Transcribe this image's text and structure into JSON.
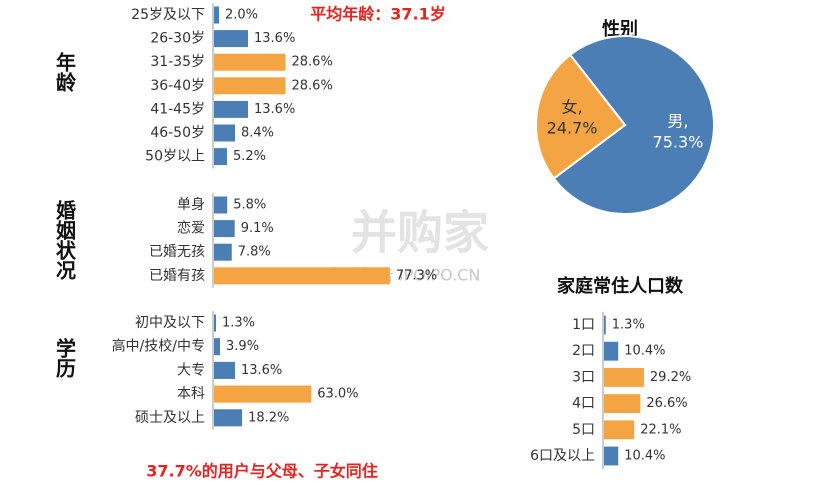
{
  "chart_data": [
    {
      "type": "bar",
      "orientation": "horizontal",
      "title": "年龄",
      "categories": [
        "25岁及以下",
        "26-30岁",
        "31-35岁",
        "36-40岁",
        "41-45岁",
        "46-50岁",
        "50岁以上"
      ],
      "values": [
        2.0,
        13.6,
        28.6,
        28.6,
        13.6,
        8.4,
        5.2
      ],
      "value_labels": [
        "2.0%",
        "13.6%",
        "28.6%",
        "28.6%",
        "13.6%",
        "8.4%",
        "5.2%"
      ],
      "colors": [
        "#4a7eb4",
        "#4a7eb4",
        "#f5a443",
        "#f5a443",
        "#4a7eb4",
        "#4a7eb4",
        "#4a7eb4"
      ],
      "xlim": [
        0,
        30
      ]
    },
    {
      "type": "bar",
      "orientation": "horizontal",
      "title": "婚姻状况",
      "categories": [
        "单身",
        "恋爱",
        "已婚无孩",
        "已婚有孩"
      ],
      "values": [
        5.8,
        9.1,
        7.8,
        77.3
      ],
      "value_labels": [
        "5.8%",
        "9.1%",
        "7.8%",
        "77.3%"
      ],
      "colors": [
        "#4a7eb4",
        "#4a7eb4",
        "#4a7eb4",
        "#f5a443"
      ],
      "xlim": [
        0,
        80
      ]
    },
    {
      "type": "bar",
      "orientation": "horizontal",
      "title": "学历",
      "categories": [
        "初中及以下",
        "高中/技校/中专",
        "大专",
        "本科",
        "硕士及以上"
      ],
      "values": [
        1.3,
        3.9,
        13.6,
        63.0,
        18.2
      ],
      "value_labels": [
        "1.3%",
        "3.9%",
        "13.6%",
        "63.0%",
        "18.2%"
      ],
      "colors": [
        "#4a7eb4",
        "#4a7eb4",
        "#4a7eb4",
        "#f5a443",
        "#4a7eb4"
      ],
      "xlim": [
        0,
        70
      ]
    },
    {
      "type": "pie",
      "title": "性别",
      "categories": [
        "男,",
        "女,"
      ],
      "values": [
        75.3,
        24.7
      ],
      "value_labels": [
        "75.3%",
        "24.7%"
      ],
      "colors": [
        "#4a7eb4",
        "#f5a443"
      ]
    },
    {
      "type": "bar",
      "orientation": "horizontal",
      "title": "家庭常住人口数",
      "categories": [
        "1口",
        "2口",
        "3口",
        "4口",
        "5口",
        "6口及以上"
      ],
      "values": [
        1.3,
        10.4,
        29.2,
        26.6,
        22.1,
        10.4
      ],
      "value_labels": [
        "1.3%",
        "10.4%",
        "29.2%",
        "26.6%",
        "22.1%",
        "10.4%"
      ],
      "colors": [
        "#4a7eb4",
        "#4a7eb4",
        "#f5a443",
        "#f5a443",
        "#f5a443",
        "#4a7eb4"
      ],
      "xlim": [
        0,
        30
      ]
    }
  ],
  "annotations": [
    "平均年龄：37.1岁",
    "37.7%的用户与父母、子女同住"
  ],
  "watermark": [
    "并购家",
    "行业报告 IPOIPO.CN"
  ]
}
